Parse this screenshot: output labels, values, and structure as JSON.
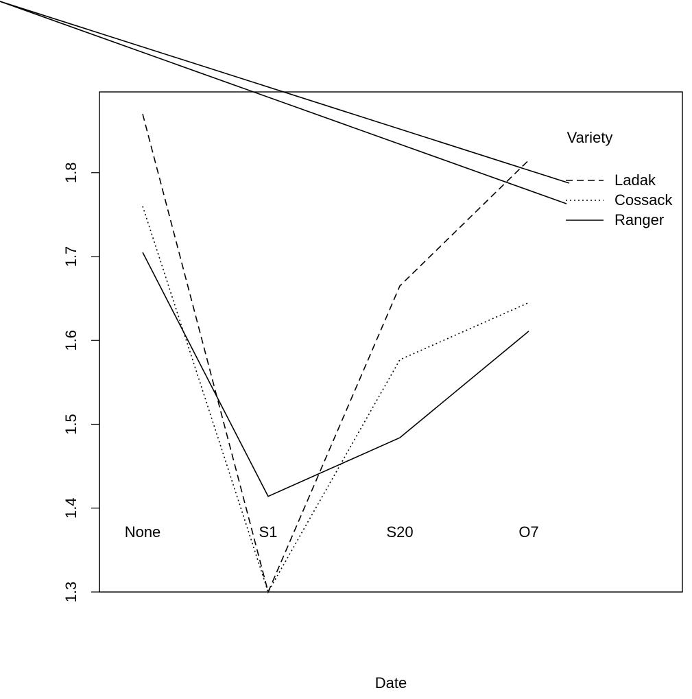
{
  "chart_data": {
    "type": "line",
    "title": "",
    "xlabel": "Date",
    "ylabel": "",
    "categories": [
      "None",
      "S1",
      "S20",
      "O7"
    ],
    "ylim": [
      1.3,
      1.9
    ],
    "yticks": [
      "1.3",
      "1.4",
      "1.5",
      "1.6",
      "1.7",
      "1.8"
    ],
    "grid": false,
    "legend": {
      "title": "Variety",
      "placement": "right",
      "entries": [
        "Ladak",
        "Cossack",
        "Ranger"
      ]
    },
    "series": [
      {
        "name": "Ladak",
        "style": "dashed",
        "values": [
          1.87,
          1.3,
          1.665,
          1.815
        ]
      },
      {
        "name": "Cossack",
        "style": "dotted",
        "values": [
          1.76,
          1.3,
          1.577,
          1.645
        ]
      },
      {
        "name": "Ranger",
        "style": "solid",
        "values": [
          1.705,
          1.414,
          1.484,
          1.611
        ]
      }
    ]
  }
}
